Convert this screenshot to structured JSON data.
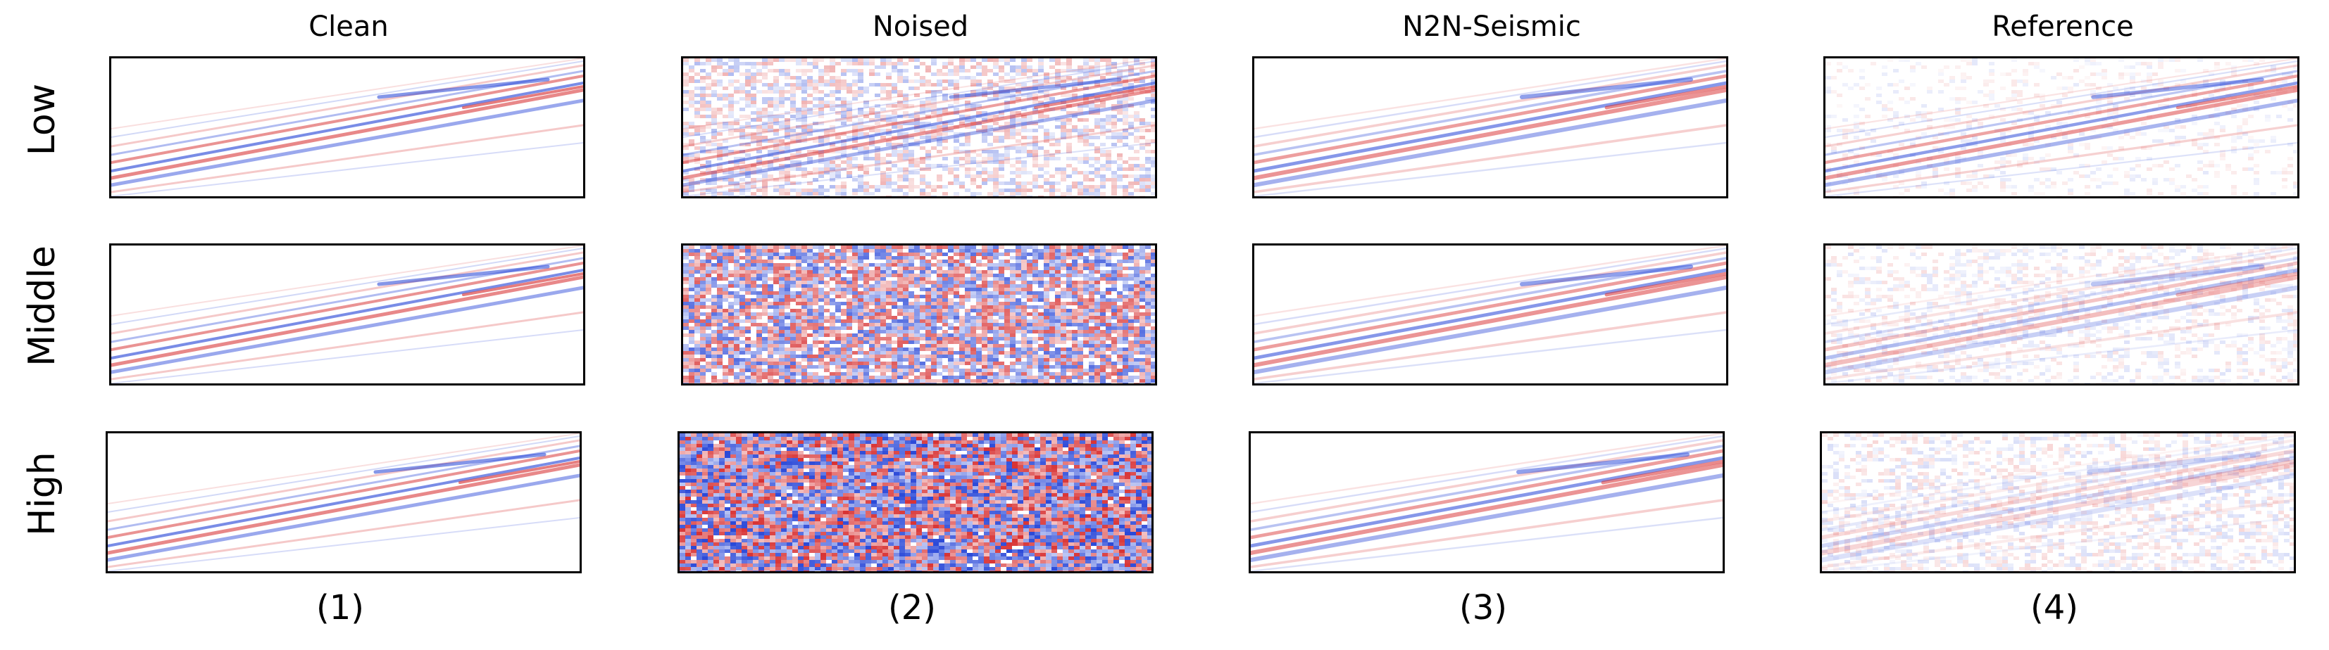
{
  "columns": [
    {
      "title": "Clean",
      "caption": "(1)"
    },
    {
      "title": "Noised",
      "caption": "(2)"
    },
    {
      "title": "N2N-Seismic",
      "caption": "(3)"
    },
    {
      "title": "Reference",
      "caption": "(4)"
    }
  ],
  "rows": [
    {
      "label": "Low"
    },
    {
      "label": "Middle"
    },
    {
      "label": "High"
    }
  ],
  "colormap": {
    "positive": "#d62728",
    "negative": "#1f3fd6",
    "zero": "#ffffff"
  }
}
